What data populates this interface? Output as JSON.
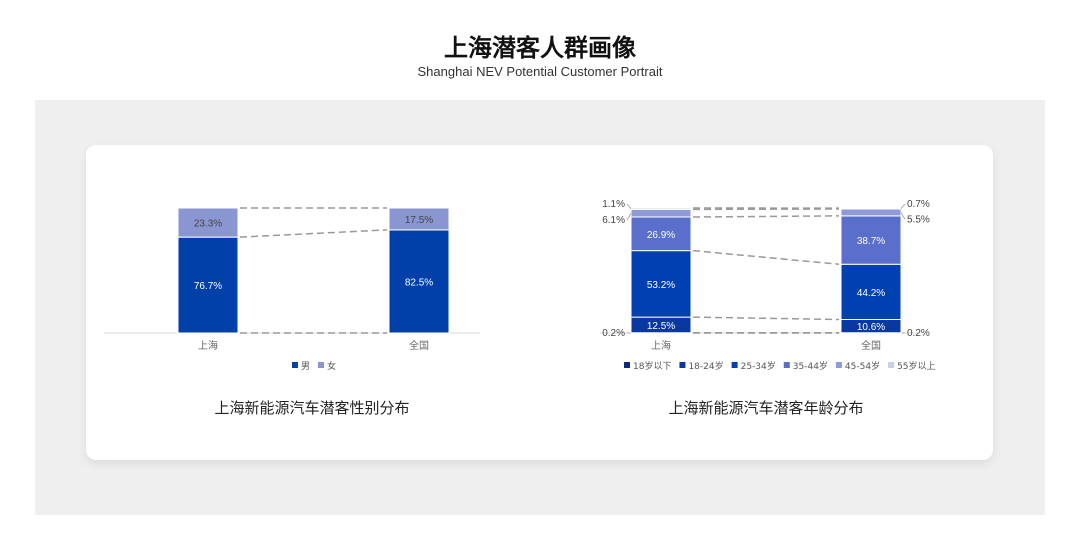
{
  "header": {
    "title": "上海潜客人群画像",
    "subtitle": "Shanghai NEV Potential Customer Portrait"
  },
  "chart_data": [
    {
      "type": "bar",
      "stacked": true,
      "title": "上海新能源汽车潜客性别分布",
      "categories": [
        "上海",
        "全国"
      ],
      "series": [
        {
          "name": "男",
          "values": [
            76.7,
            82.5
          ],
          "color": "#0040a8"
        },
        {
          "name": "女",
          "values": [
            23.3,
            17.5
          ],
          "color": "#8a96d2"
        }
      ],
      "labels": [
        [
          "76.7%",
          "82.5%"
        ],
        [
          "23.3%",
          "17.5%"
        ]
      ],
      "legend": "bottom",
      "ylim": [
        0,
        100
      ],
      "connector_lines": "dashed"
    },
    {
      "type": "bar",
      "stacked": true,
      "title": "上海新能源汽车潜客年龄分布",
      "categories": [
        "上海",
        "全国"
      ],
      "series": [
        {
          "name": "18岁以下",
          "values": [
            0.2,
            0.2
          ],
          "color": "#0a2a85"
        },
        {
          "name": "18-24岁",
          "values": [
            12.5,
            10.6
          ],
          "color": "#0838a0"
        },
        {
          "name": "25-34岁",
          "values": [
            53.2,
            44.2
          ],
          "color": "#0040b0"
        },
        {
          "name": "35-44岁",
          "values": [
            26.9,
            38.7
          ],
          "color": "#5a6ecb"
        },
        {
          "name": "45-54岁",
          "values": [
            6.1,
            5.5
          ],
          "color": "#8f9ad8"
        },
        {
          "name": "55岁以上",
          "values": [
            1.1,
            0.7
          ],
          "color": "#c9cdea"
        }
      ],
      "labels": [
        [
          "0.2%",
          "0.2%"
        ],
        [
          "12.5%",
          "10.6%"
        ],
        [
          "53.2%",
          "44.2%"
        ],
        [
          "26.9%",
          "38.7%"
        ],
        [
          "6.1%",
          "5.5%"
        ],
        [
          "1.1%",
          "0.7%"
        ]
      ],
      "legend": "bottom",
      "ylim": [
        0,
        100
      ],
      "connector_lines": "dashed"
    }
  ]
}
